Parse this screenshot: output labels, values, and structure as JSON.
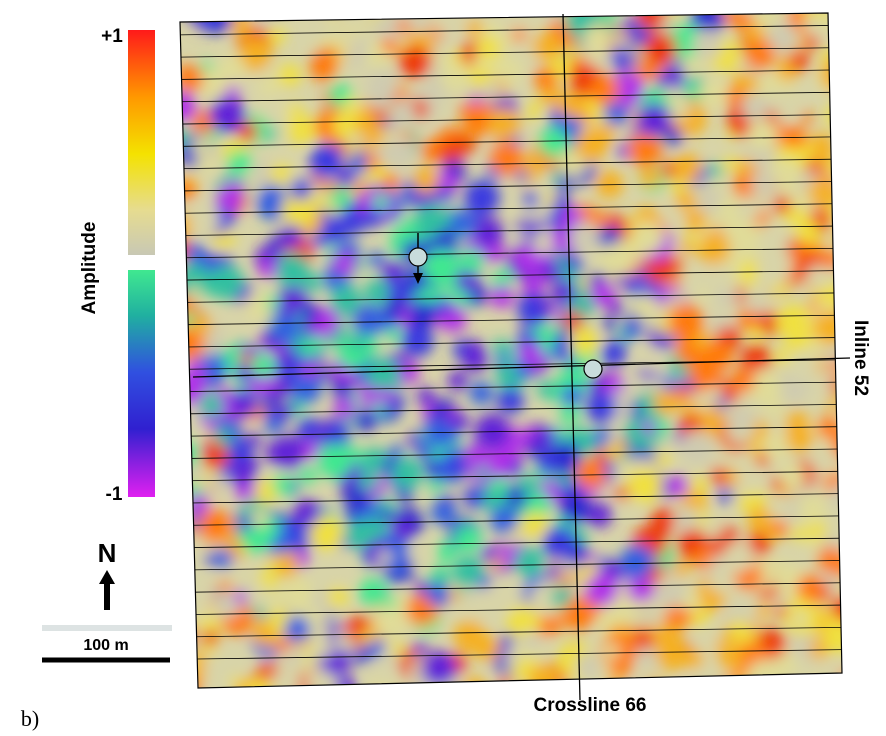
{
  "colorbar": {
    "title": "Amplitude",
    "max_label": "+1",
    "min_label": "-1"
  },
  "north_label": "N",
  "scale_bar_label": "100 m",
  "inline_label": "Inline 52",
  "crossline_label": "Crossline 66",
  "panel_label": "b)"
}
